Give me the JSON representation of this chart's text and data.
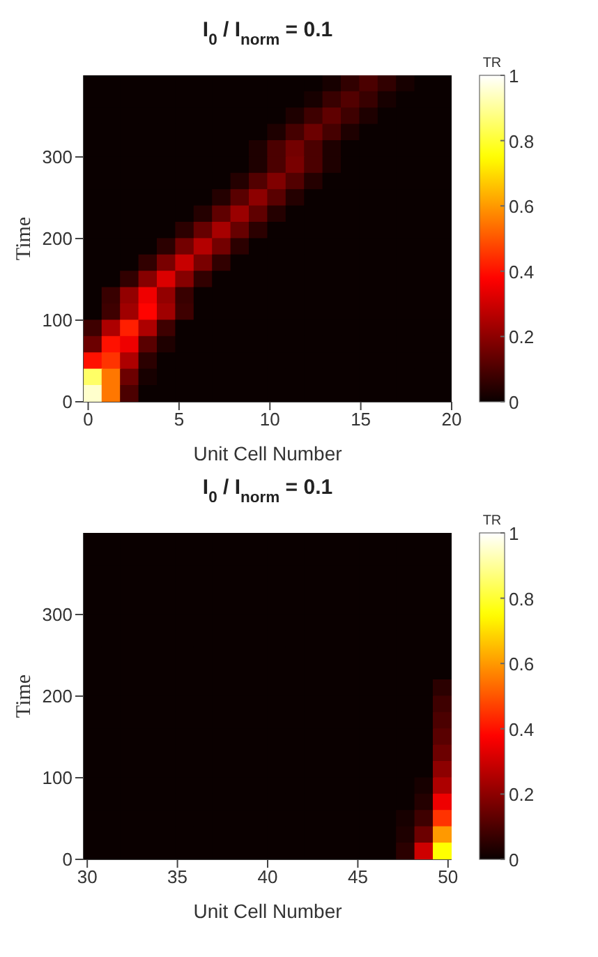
{
  "chart_data": [
    {
      "type": "heatmap",
      "title": "I$_{0}$ / I$_{norm}$ = 0.1",
      "xlabel": "Unit Cell Number",
      "ylabel": "Time",
      "clabel": "TR",
      "xlim": [
        -0.25,
        20
      ],
      "ylim": [
        0,
        400
      ],
      "xticks": [
        0,
        5,
        10,
        15,
        20
      ],
      "yticks": [
        0,
        100,
        200,
        300
      ],
      "clim": [
        0,
        1
      ],
      "cticks": [
        0,
        0.2,
        0.4,
        0.6,
        0.8,
        1
      ],
      "cells": [
        [
          0,
          0,
          0,
          0,
          0,
          0,
          0,
          0,
          0,
          0,
          0,
          0,
          0,
          0.02,
          0.06,
          0.1,
          0.06,
          0.02,
          0,
          0
        ],
        [
          0,
          0,
          0,
          0,
          0,
          0,
          0,
          0,
          0,
          0,
          0,
          0,
          0.02,
          0.07,
          0.11,
          0.07,
          0.02,
          0,
          0,
          0
        ],
        [
          0,
          0,
          0,
          0,
          0,
          0,
          0,
          0,
          0,
          0,
          0,
          0.03,
          0.08,
          0.13,
          0.08,
          0.03,
          0,
          0,
          0,
          0
        ],
        [
          0,
          0,
          0,
          0,
          0,
          0,
          0,
          0,
          0,
          0,
          0.03,
          0.09,
          0.15,
          0.09,
          0.03,
          0,
          0,
          0,
          0,
          0
        ],
        [
          0,
          0,
          0,
          0,
          0,
          0,
          0,
          0,
          0,
          0.03,
          0.1,
          0.16,
          0.1,
          0.03,
          0,
          0,
          0,
          0,
          0,
          0
        ],
        [
          0,
          0,
          0,
          0,
          0,
          0,
          0,
          0,
          0,
          0.03,
          0.1,
          0.17,
          0.1,
          0.03,
          0,
          0,
          0,
          0,
          0,
          0
        ],
        [
          0,
          0,
          0,
          0,
          0,
          0,
          0,
          0,
          0.04,
          0.11,
          0.18,
          0.11,
          0.04,
          0,
          0,
          0,
          0,
          0,
          0,
          0
        ],
        [
          0,
          0,
          0,
          0,
          0,
          0,
          0,
          0.04,
          0.12,
          0.2,
          0.12,
          0.04,
          0,
          0,
          0,
          0,
          0,
          0,
          0,
          0
        ],
        [
          0,
          0,
          0,
          0,
          0,
          0,
          0.04,
          0.13,
          0.22,
          0.13,
          0.04,
          0,
          0,
          0,
          0,
          0,
          0,
          0,
          0,
          0
        ],
        [
          0,
          0,
          0,
          0,
          0,
          0.05,
          0.14,
          0.24,
          0.14,
          0.05,
          0,
          0,
          0,
          0,
          0,
          0,
          0,
          0,
          0,
          0
        ],
        [
          0,
          0,
          0,
          0,
          0.05,
          0.16,
          0.26,
          0.16,
          0.05,
          0,
          0,
          0,
          0,
          0,
          0,
          0,
          0,
          0,
          0,
          0
        ],
        [
          0,
          0,
          0,
          0.06,
          0.17,
          0.29,
          0.17,
          0.06,
          0,
          0,
          0,
          0,
          0,
          0,
          0,
          0,
          0,
          0,
          0,
          0
        ],
        [
          0,
          0,
          0.06,
          0.19,
          0.32,
          0.19,
          0.06,
          0,
          0,
          0,
          0,
          0,
          0,
          0,
          0,
          0,
          0,
          0,
          0,
          0
        ],
        [
          0,
          0.07,
          0.21,
          0.35,
          0.21,
          0.07,
          0,
          0,
          0,
          0,
          0,
          0,
          0,
          0,
          0,
          0,
          0,
          0,
          0,
          0
        ],
        [
          0,
          0.08,
          0.23,
          0.38,
          0.23,
          0.08,
          0,
          0,
          0,
          0,
          0,
          0,
          0,
          0,
          0,
          0,
          0,
          0,
          0,
          0
        ],
        [
          0.08,
          0.25,
          0.42,
          0.25,
          0.08,
          0,
          0,
          0,
          0,
          0,
          0,
          0,
          0,
          0,
          0,
          0,
          0,
          0,
          0,
          0
        ],
        [
          0.15,
          0.4,
          0.35,
          0.12,
          0.03,
          0,
          0,
          0,
          0,
          0,
          0,
          0,
          0,
          0,
          0,
          0,
          0,
          0,
          0,
          0
        ],
        [
          0.4,
          0.45,
          0.25,
          0.05,
          0,
          0,
          0,
          0,
          0,
          0,
          0,
          0,
          0,
          0,
          0,
          0,
          0,
          0,
          0,
          0
        ],
        [
          0.85,
          0.55,
          0.15,
          0.02,
          0,
          0,
          0,
          0,
          0,
          0,
          0,
          0,
          0,
          0,
          0,
          0,
          0,
          0,
          0,
          0
        ],
        [
          0.95,
          0.55,
          0.1,
          0,
          0,
          0,
          0,
          0,
          0,
          0,
          0,
          0,
          0,
          0,
          0,
          0,
          0,
          0,
          0,
          0
        ]
      ]
    },
    {
      "type": "heatmap",
      "title": "I$_{0}$ / I$_{norm}$ = 0.1",
      "xlabel": "Unit Cell Number",
      "ylabel": "Time",
      "clabel": "TR",
      "xlim": [
        29.8,
        50.2
      ],
      "ylim": [
        0,
        400
      ],
      "xticks": [
        30,
        35,
        40,
        45,
        50
      ],
      "yticks": [
        0,
        100,
        200,
        300
      ],
      "clim": [
        0,
        1
      ],
      "cticks": [
        0,
        0.2,
        0.4,
        0.6,
        0.8,
        1
      ],
      "cells": [
        [
          0,
          0,
          0,
          0,
          0,
          0,
          0,
          0,
          0,
          0,
          0,
          0,
          0,
          0,
          0,
          0,
          0,
          0,
          0,
          0
        ],
        [
          0,
          0,
          0,
          0,
          0,
          0,
          0,
          0,
          0,
          0,
          0,
          0,
          0,
          0,
          0,
          0,
          0,
          0,
          0,
          0
        ],
        [
          0,
          0,
          0,
          0,
          0,
          0,
          0,
          0,
          0,
          0,
          0,
          0,
          0,
          0,
          0,
          0,
          0,
          0,
          0,
          0
        ],
        [
          0,
          0,
          0,
          0,
          0,
          0,
          0,
          0,
          0,
          0,
          0,
          0,
          0,
          0,
          0,
          0,
          0,
          0,
          0,
          0
        ],
        [
          0,
          0,
          0,
          0,
          0,
          0,
          0,
          0,
          0,
          0,
          0,
          0,
          0,
          0,
          0,
          0,
          0,
          0,
          0,
          0
        ],
        [
          0,
          0,
          0,
          0,
          0,
          0,
          0,
          0,
          0,
          0,
          0,
          0,
          0,
          0,
          0,
          0,
          0,
          0,
          0,
          0
        ],
        [
          0,
          0,
          0,
          0,
          0,
          0,
          0,
          0,
          0,
          0,
          0,
          0,
          0,
          0,
          0,
          0,
          0,
          0,
          0,
          0
        ],
        [
          0,
          0,
          0,
          0,
          0,
          0,
          0,
          0,
          0,
          0,
          0,
          0,
          0,
          0,
          0,
          0,
          0,
          0,
          0,
          0
        ],
        [
          0,
          0,
          0,
          0,
          0,
          0,
          0,
          0,
          0,
          0,
          0,
          0,
          0,
          0,
          0,
          0,
          0,
          0,
          0,
          0
        ],
        [
          0,
          0,
          0,
          0,
          0,
          0,
          0,
          0,
          0,
          0,
          0,
          0,
          0,
          0,
          0,
          0,
          0,
          0,
          0,
          0.05
        ],
        [
          0,
          0,
          0,
          0,
          0,
          0,
          0,
          0,
          0,
          0,
          0,
          0,
          0,
          0,
          0,
          0,
          0,
          0,
          0,
          0.08
        ],
        [
          0,
          0,
          0,
          0,
          0,
          0,
          0,
          0,
          0,
          0,
          0,
          0,
          0,
          0,
          0,
          0,
          0,
          0,
          0,
          0.1
        ],
        [
          0,
          0,
          0,
          0,
          0,
          0,
          0,
          0,
          0,
          0,
          0,
          0,
          0,
          0,
          0,
          0,
          0,
          0,
          0,
          0.12
        ],
        [
          0,
          0,
          0,
          0,
          0,
          0,
          0,
          0,
          0,
          0,
          0,
          0,
          0,
          0,
          0,
          0,
          0,
          0,
          0,
          0.15
        ],
        [
          0,
          0,
          0,
          0,
          0,
          0,
          0,
          0,
          0,
          0,
          0,
          0,
          0,
          0,
          0,
          0,
          0,
          0,
          0,
          0.2
        ],
        [
          0,
          0,
          0,
          0,
          0,
          0,
          0,
          0,
          0,
          0,
          0,
          0,
          0,
          0,
          0,
          0,
          0,
          0,
          0.02,
          0.25
        ],
        [
          0,
          0,
          0,
          0,
          0,
          0,
          0,
          0,
          0,
          0,
          0,
          0,
          0,
          0,
          0,
          0,
          0,
          0,
          0.04,
          0.35
        ],
        [
          0,
          0,
          0,
          0,
          0,
          0,
          0,
          0,
          0,
          0,
          0,
          0,
          0,
          0,
          0,
          0,
          0,
          0.02,
          0.08,
          0.45
        ],
        [
          0,
          0,
          0,
          0,
          0,
          0,
          0,
          0,
          0,
          0,
          0,
          0,
          0,
          0,
          0,
          0,
          0,
          0.03,
          0.15,
          0.6
        ],
        [
          0,
          0,
          0,
          0,
          0,
          0,
          0,
          0,
          0,
          0,
          0,
          0,
          0,
          0,
          0,
          0,
          0,
          0.05,
          0.3,
          0.75
        ]
      ]
    }
  ]
}
